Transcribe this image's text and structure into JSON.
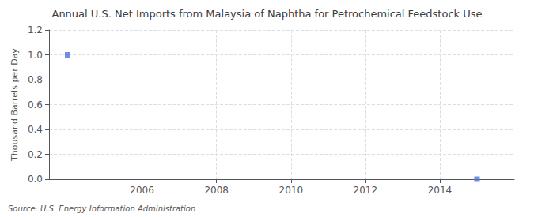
{
  "chart_data": {
    "type": "scatter",
    "title": "Annual U.S. Net Imports from Malaysia of Naphtha for Petrochemical Feedstock Use",
    "ylabel": "Thousand Barrels per Day",
    "annotation": "Source: U.S. Energy Information Administration",
    "x": [
      2004,
      2015
    ],
    "values": [
      1.0,
      0.0
    ],
    "marker": "square",
    "xlim": [
      2003.5,
      2016.0
    ],
    "xticks": [
      2006,
      2008,
      2010,
      2012,
      2014
    ],
    "ylim": [
      0.0,
      1.2
    ],
    "yticks": [
      {
        "value": 0.0,
        "label": "0.0"
      },
      0.2,
      0.4,
      0.6,
      0.8,
      {
        "value": 1.0,
        "label": "1.0"
      },
      1.2
    ],
    "grid": true
  }
}
